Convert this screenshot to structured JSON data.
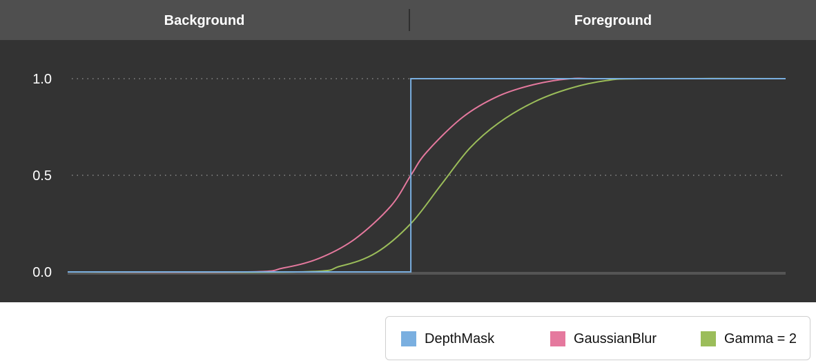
{
  "header": {
    "left_label": "Background",
    "right_label": "Foreground"
  },
  "colors": {
    "header_bg": "#4f4f4f",
    "plot_bg": "#333333",
    "grid": "#9a9a9a",
    "baseline": "#555555"
  },
  "chart_data": {
    "type": "line",
    "title": "",
    "xlabel": "",
    "ylabel": "",
    "xlim": [
      0,
      1
    ],
    "ylim": [
      0,
      1
    ],
    "yticks": [
      "0.0",
      "0.5",
      "1.0"
    ],
    "grid": true,
    "legend_position": "bottom-right",
    "series": [
      {
        "name": "DepthMask",
        "color": "#7aafe0",
        "x": [
          0,
          0.478,
          0.478,
          1
        ],
        "y": [
          0,
          0,
          1,
          1
        ]
      },
      {
        "name": "GaussianBlur",
        "color": "#e5799e",
        "x": [
          0,
          0.25,
          0.3,
          0.35,
          0.4,
          0.45,
          0.478,
          0.5,
          0.55,
          0.6,
          0.65,
          0.7,
          0.75,
          1
        ],
        "y": [
          0,
          0,
          0.02,
          0.07,
          0.17,
          0.34,
          0.5,
          0.62,
          0.8,
          0.91,
          0.97,
          1,
          1,
          1
        ]
      },
      {
        "name": "Gamma = 2",
        "color": "#9bbd5a",
        "x": [
          0,
          0.32,
          0.38,
          0.43,
          0.478,
          0.52,
          0.56,
          0.6,
          0.65,
          0.7,
          0.75,
          0.8,
          1
        ],
        "y": [
          0,
          0,
          0.03,
          0.1,
          0.25,
          0.45,
          0.64,
          0.77,
          0.88,
          0.95,
          0.99,
          1,
          1
        ]
      }
    ]
  }
}
